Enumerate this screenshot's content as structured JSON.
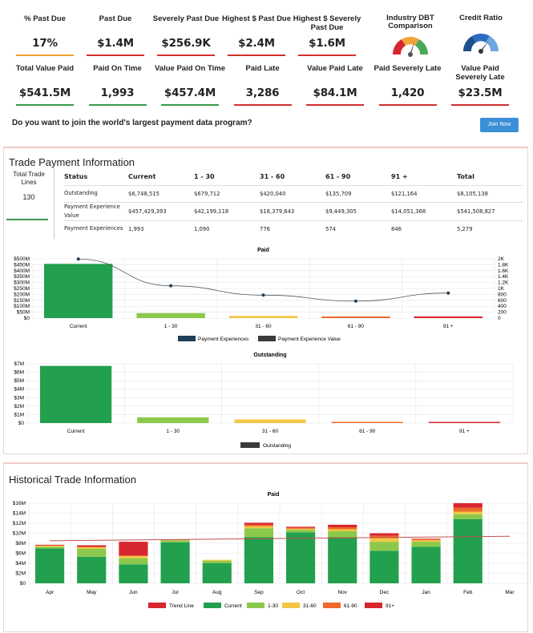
{
  "metrics_row1": [
    {
      "label": "% Past Due",
      "value": "17%",
      "color": "#f0a030"
    },
    {
      "label": "Past Due",
      "value": "$1.4M",
      "color": "#d32f2f"
    },
    {
      "label": "Severely Past Due",
      "value": "$256.9K",
      "color": "#d32f2f"
    },
    {
      "label": "Highest $ Past Due",
      "value": "$2.4M",
      "color": "#d32f2f"
    },
    {
      "label": "Highest $ Severely Past Due",
      "value": "$1.6M",
      "color": "#d32f2f"
    }
  ],
  "gauges": {
    "dbt_label": "Industry DBT Comparison",
    "credit_label": "Credit Ratio"
  },
  "metrics_row2": [
    {
      "label": "Total Value Paid",
      "value": "$541.5M",
      "color": "#3a9a4c"
    },
    {
      "label": "Paid On Time",
      "value": "1,993",
      "color": "#3a9a4c"
    },
    {
      "label": "Value Paid On Time",
      "value": "$457.4M",
      "color": "#3a9a4c"
    },
    {
      "label": "Paid Late",
      "value": "3,286",
      "color": "#d32f2f"
    },
    {
      "label": "Value Paid Late",
      "value": "$84.1M",
      "color": "#d32f2f"
    },
    {
      "label": "Paid Severely Late",
      "value": "1,420",
      "color": "#d32f2f"
    },
    {
      "label": "Value Paid Severely Late",
      "value": "$23.5M",
      "color": "#d32f2f"
    }
  ],
  "cta": {
    "question": "Do you want to join the world's largest payment data program?",
    "button": "Join Now"
  },
  "trade_payment": {
    "title": "Trade Payment Information",
    "total_label": "Total Trade Lines",
    "total_value": "130",
    "headers": [
      "Status",
      "Current",
      "1 - 30",
      "31 - 60",
      "61 - 90",
      "91 +",
      "Total"
    ],
    "rows": [
      [
        "Outstanding",
        "$6,748,515",
        "$679,712",
        "$420,040",
        "$135,709",
        "$121,164",
        "$8,105,138"
      ],
      [
        "Payment Experience Value",
        "$457,429,393",
        "$42,199,118",
        "$18,379,643",
        "$9,449,305",
        "$14,051,368",
        "$541,508,827"
      ],
      [
        "Payment Experiences",
        "1,993",
        "1,090",
        "776",
        "574",
        "846",
        "5,279"
      ]
    ]
  },
  "chart_data": [
    {
      "type": "bar",
      "title": "Paid",
      "categories": [
        "Current",
        "1 - 30",
        "31 - 60",
        "61 - 90",
        "91 +"
      ],
      "series": [
        {
          "name": "Payment Experience Value",
          "values": [
            457.4,
            42.2,
            18.4,
            9.4,
            14.1
          ]
        },
        {
          "name": "Payment Experiences",
          "values": [
            1993,
            1090,
            776,
            574,
            846
          ]
        }
      ],
      "bar_colors": [
        "#22a04e",
        "#8cc84b",
        "#f2c744",
        "#ee6a2a",
        "#d7262e"
      ],
      "y_ticks_left": [
        "$500M",
        "$450M",
        "$400M",
        "$350M",
        "$300M",
        "$250M",
        "$200M",
        "$150M",
        "$100M",
        "$50M",
        "$0"
      ],
      "y_ticks_right": [
        "2K",
        "1.8K",
        "1.6K",
        "1.4K",
        "1.2K",
        "1K",
        "800",
        "600",
        "400",
        "200",
        "0"
      ],
      "ylim": [
        0,
        500
      ],
      "ylim_right": [
        0,
        2000
      ],
      "legend_colors": [
        "#1f3f5a",
        "#3a3a3a"
      ]
    },
    {
      "type": "bar",
      "title": "Outstanding",
      "categories": [
        "Current",
        "1 - 30",
        "31 - 60",
        "61 - 90",
        "91 +"
      ],
      "series": [
        {
          "name": "Outstanding",
          "values": [
            6.75,
            0.68,
            0.42,
            0.14,
            0.12
          ]
        }
      ],
      "bar_colors": [
        "#22a04e",
        "#8cc84b",
        "#f2c744",
        "#ee6a2a",
        "#d7262e"
      ],
      "y_ticks": [
        "$7M",
        "$6M",
        "$5M",
        "$4M",
        "$3M",
        "$2M",
        "$1M",
        "$0"
      ],
      "ylim": [
        0,
        7
      ],
      "legend_color": "#3a3a3a"
    },
    {
      "type": "bar",
      "title": "Paid",
      "categories": [
        "Apr",
        "May",
        "Jun",
        "Jul",
        "Aug",
        "Sep",
        "Oct",
        "Nov",
        "Dec",
        "Jan",
        "Feb",
        "Mar"
      ],
      "series": [
        {
          "name": "Current",
          "values": [
            7.0,
            5.3,
            3.8,
            8.2,
            4.0,
            9.2,
            10.2,
            9.2,
            6.5,
            7.3,
            12.8,
            0
          ]
        },
        {
          "name": "1 - 30",
          "values": [
            0.3,
            1.6,
            1.2,
            0.4,
            0.5,
            1.8,
            0.5,
            1.2,
            1.8,
            1.0,
            1.0,
            0
          ]
        },
        {
          "name": "31-60",
          "values": [
            0.2,
            0.3,
            0.5,
            0.1,
            0.2,
            0.4,
            0.2,
            0.4,
            0.7,
            0.3,
            0.5,
            0
          ]
        },
        {
          "name": "61-90",
          "values": [
            0.1,
            0.1,
            0,
            0,
            0,
            0.3,
            0.2,
            0.4,
            0.5,
            0.2,
            0.8,
            0
          ]
        },
        {
          "name": "91+",
          "values": [
            0.1,
            0.3,
            2.8,
            0.1,
            0,
            0.4,
            0.2,
            0.5,
            0.5,
            0.1,
            0.9,
            0
          ]
        },
        {
          "name": "Trend Line",
          "values": [
            8.5,
            8.6,
            8.6,
            8.7,
            8.7,
            8.8,
            8.9,
            9.0,
            9.1,
            9.2,
            9.3,
            9.4
          ]
        }
      ],
      "colors": [
        "#22a04e",
        "#8cc84b",
        "#f2c744",
        "#ee6a2a",
        "#d7262e"
      ],
      "trend_color": "#c0504d",
      "y_ticks": [
        "$16M",
        "$14M",
        "$12M",
        "$10M",
        "$8M",
        "$6M",
        "$4M",
        "$2M",
        "$0"
      ],
      "ylim": [
        0,
        16
      ]
    }
  ],
  "historical": {
    "title": "Historical Trade Information"
  },
  "legend_hist": [
    "Trend Line",
    "Current",
    "1-30",
    "31-60",
    "61-90",
    "91+"
  ],
  "legend_hist_colors": [
    "#d7262e",
    "#22a04e",
    "#8cc84b",
    "#f2c744",
    "#ee6a2a",
    "#d7262e"
  ]
}
